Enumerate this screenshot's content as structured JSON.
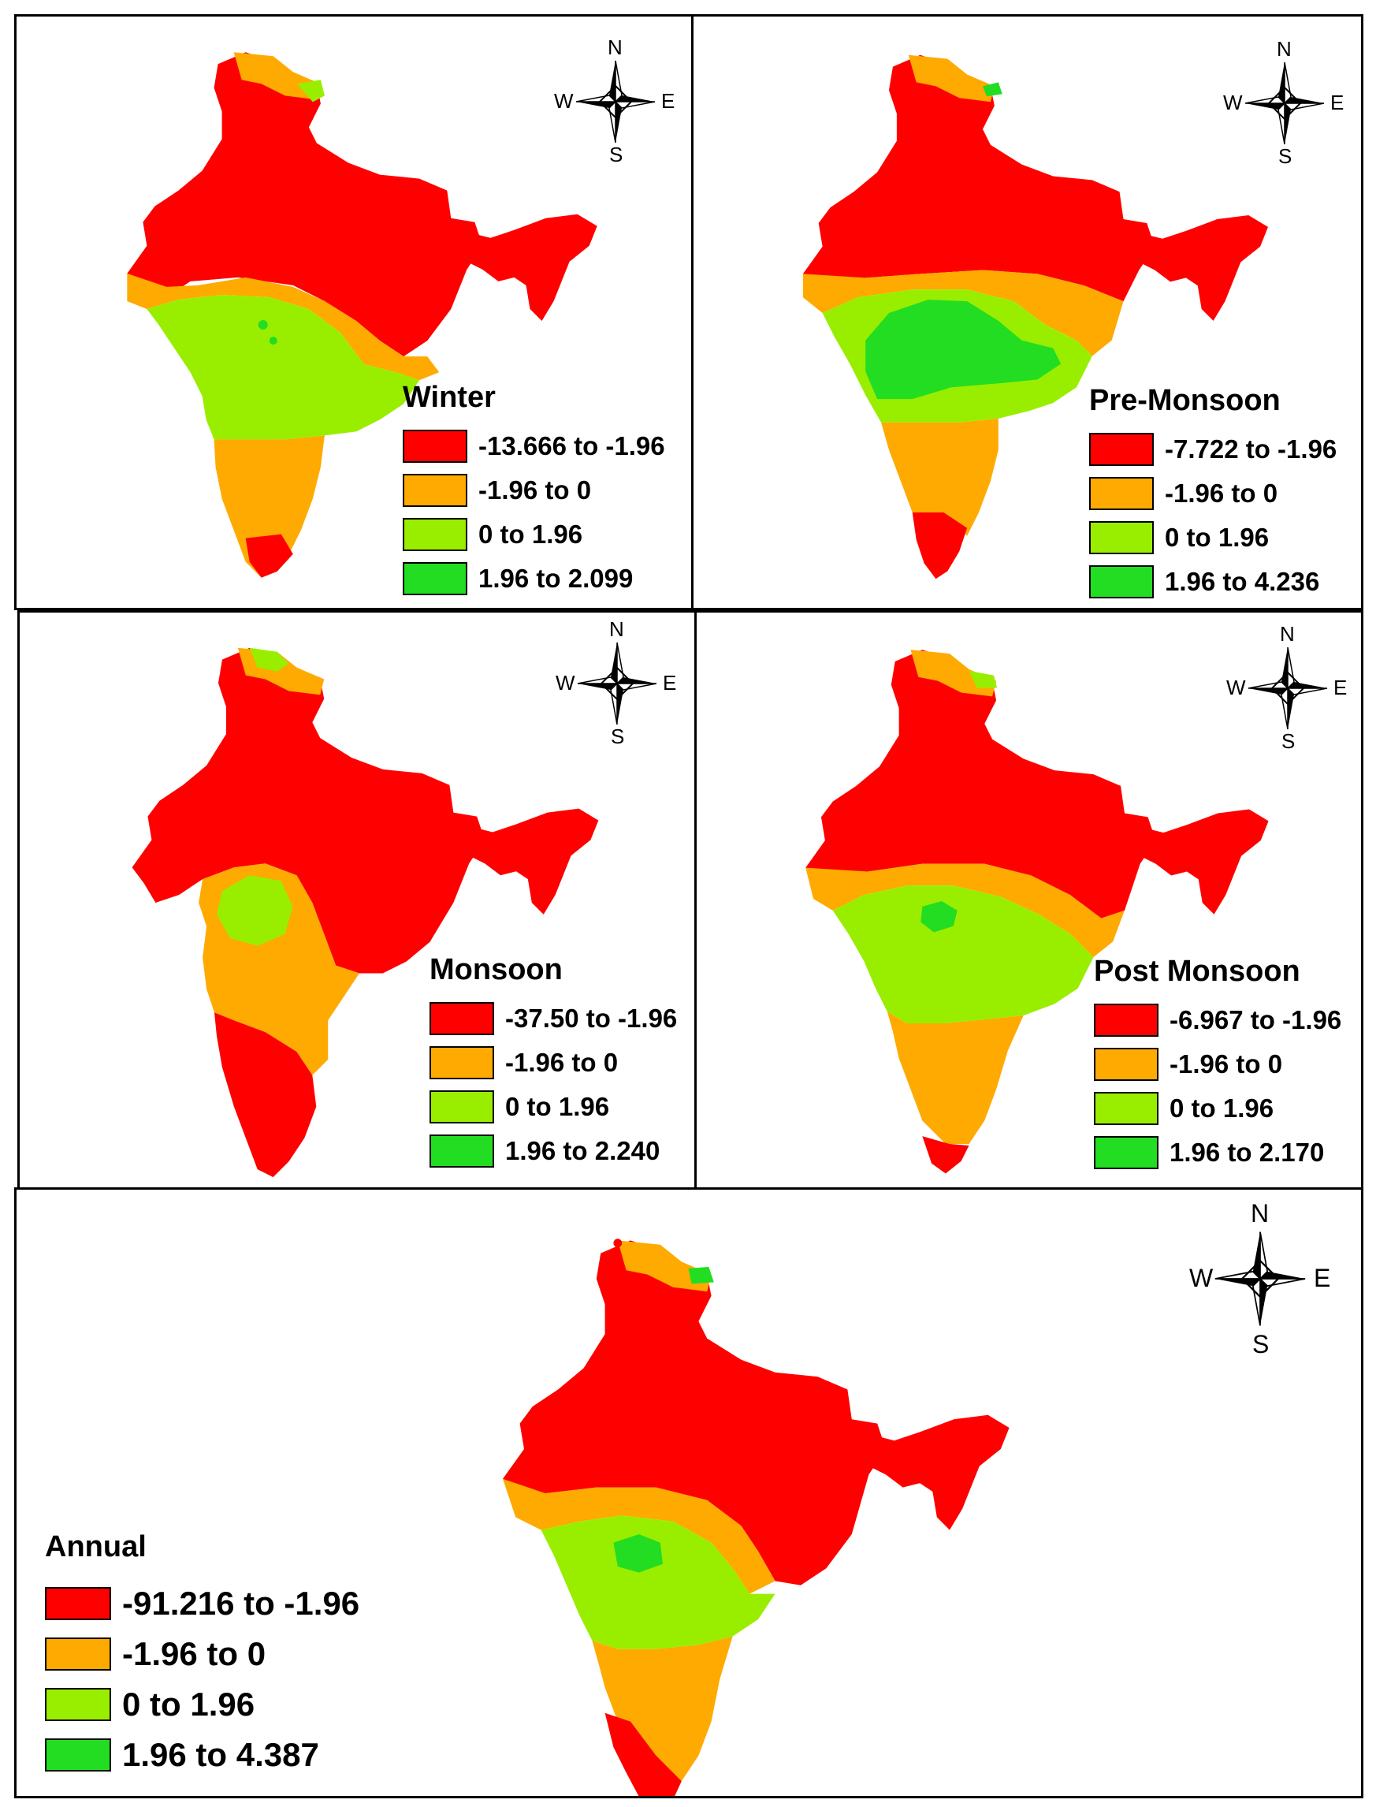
{
  "colors": {
    "red": "#ff0000",
    "orange": "#ffaa00",
    "light_green": "#99ee00",
    "green": "#22dd22"
  },
  "compass": {
    "n": "N",
    "s": "S",
    "e": "E",
    "w": "W"
  },
  "panels": [
    {
      "id": "winter",
      "title": "Winter",
      "classes": [
        "-13.666 to -1.96",
        "-1.96 to 0",
        "0 to 1.96",
        "1.96 to 2.099"
      ]
    },
    {
      "id": "premonsoon",
      "title": "Pre-Monsoon",
      "classes": [
        "-7.722 to -1.96",
        "-1.96 to 0",
        "0 to 1.96",
        "1.96 to 4.236"
      ]
    },
    {
      "id": "monsoon",
      "title": "Monsoon",
      "classes": [
        "-37.50 to -1.96",
        "-1.96 to 0",
        "0 to 1.96",
        "1.96 to 2.240"
      ]
    },
    {
      "id": "postmonsoon",
      "title": "Post Monsoon",
      "classes": [
        "-6.967 to -1.96",
        "-1.96 to 0",
        "0 to 1.96",
        "1.96 to 2.170"
      ]
    },
    {
      "id": "annual",
      "title": "Annual",
      "classes": [
        "-91.216 to -1.96",
        "-1.96 to 0",
        "0 to 1.96",
        "1.96 to 4.387"
      ]
    }
  ]
}
